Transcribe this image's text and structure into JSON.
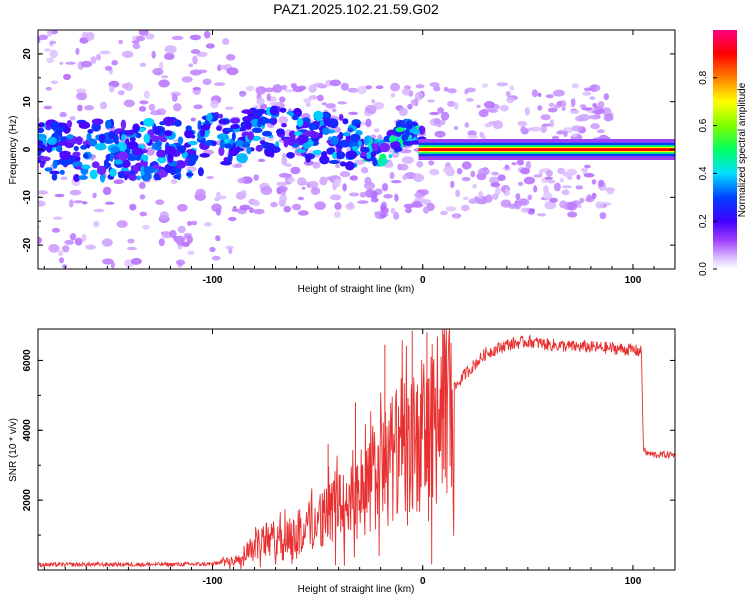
{
  "figure_title": "PAZ1.2025.102.21.59.G02",
  "chart_data": [
    {
      "type": "heatmap",
      "title": "PAZ1.2025.102.21.59.G02",
      "xlabel": "Height of straight line (km)",
      "ylabel": "Frequency (Hz)",
      "xlim": [
        -183,
        120
      ],
      "ylim": [
        -25,
        25
      ],
      "x_ticks": [
        -100,
        0,
        100
      ],
      "x_tick_labels": [
        "-100",
        "0",
        "100"
      ],
      "y_ticks": [
        20,
        10,
        0,
        -10,
        -20
      ],
      "y_tick_labels": [
        "20",
        "10",
        "0",
        "-10",
        "-20"
      ],
      "colorbar": {
        "label": "Normalized spectral amplitude",
        "range": [
          0,
          1
        ],
        "ticks": [
          0.0,
          0.2,
          0.4,
          0.6,
          0.8
        ],
        "tick_labels": [
          "0.0",
          "0.2",
          "0.4",
          "0.6",
          "0.8"
        ],
        "colormap": [
          "#ffffff",
          "#cc99ff",
          "#8800ff",
          "#0000ff",
          "#00ffff",
          "#00ff00",
          "#ffff00",
          "#ff8800",
          "#ff0000",
          "#ff0080"
        ]
      },
      "description_points": [
        {
          "x": -170,
          "y": 0,
          "amp": 0.3
        },
        {
          "x": -120,
          "y": 0,
          "amp": 0.3
        },
        {
          "x": -70,
          "y": 4,
          "amp": 0.4
        },
        {
          "x": -40,
          "y": 2,
          "amp": 0.3
        },
        {
          "x": -20,
          "y": -1,
          "amp": 0.45
        },
        {
          "x": -8,
          "y": 4,
          "amp": 0.5
        },
        {
          "x": 5,
          "y": 0,
          "amp": 0.95
        },
        {
          "x": 60,
          "y": 0,
          "amp": 0.95
        },
        {
          "x": 118,
          "y": 0,
          "amp": 0.9
        }
      ]
    },
    {
      "type": "line",
      "title": "",
      "xlabel": "Height of straight line (km)",
      "ylabel": "SNR (10 * v/v)",
      "xlim": [
        -183,
        120
      ],
      "ylim": [
        0,
        6900
      ],
      "x_ticks": [
        -100,
        0,
        100
      ],
      "x_tick_labels": [
        "-100",
        "0",
        "100"
      ],
      "y_ticks": [
        2000,
        4000,
        6000
      ],
      "y_tick_labels": [
        "2000",
        "4000",
        "6000"
      ],
      "color": "#e83030",
      "series": [
        {
          "name": "SNR",
          "x": [
            -183,
            -150,
            -120,
            -100,
            -90,
            -85,
            -80,
            -75,
            -70,
            -65,
            -60,
            -55,
            -50,
            -45,
            -40,
            -35,
            -30,
            -25,
            -20,
            -15,
            -10,
            -5,
            0,
            5,
            10,
            15,
            20,
            25,
            30,
            40,
            50,
            60,
            70,
            80,
            90,
            100,
            104,
            105,
            106,
            110,
            120
          ],
          "y": [
            150,
            160,
            160,
            170,
            300,
            500,
            800,
            900,
            950,
            1000,
            1100,
            1300,
            1500,
            1700,
            1900,
            2000,
            2300,
            2600,
            3000,
            3400,
            3700,
            3800,
            4100,
            4400,
            4800,
            5200,
            5600,
            5900,
            6200,
            6450,
            6550,
            6450,
            6400,
            6380,
            6350,
            6300,
            6250,
            3500,
            3350,
            3300,
            3300
          ]
        }
      ],
      "spikes": [
        {
          "x": -18,
          "y": 6450
        },
        {
          "x": -5,
          "y": 6850
        },
        {
          "x": 2,
          "y": 6800
        },
        {
          "x": 10,
          "y": 6750
        },
        {
          "x": -32,
          "y": 4800
        },
        {
          "x": -45,
          "y": 3600
        }
      ]
    }
  ]
}
